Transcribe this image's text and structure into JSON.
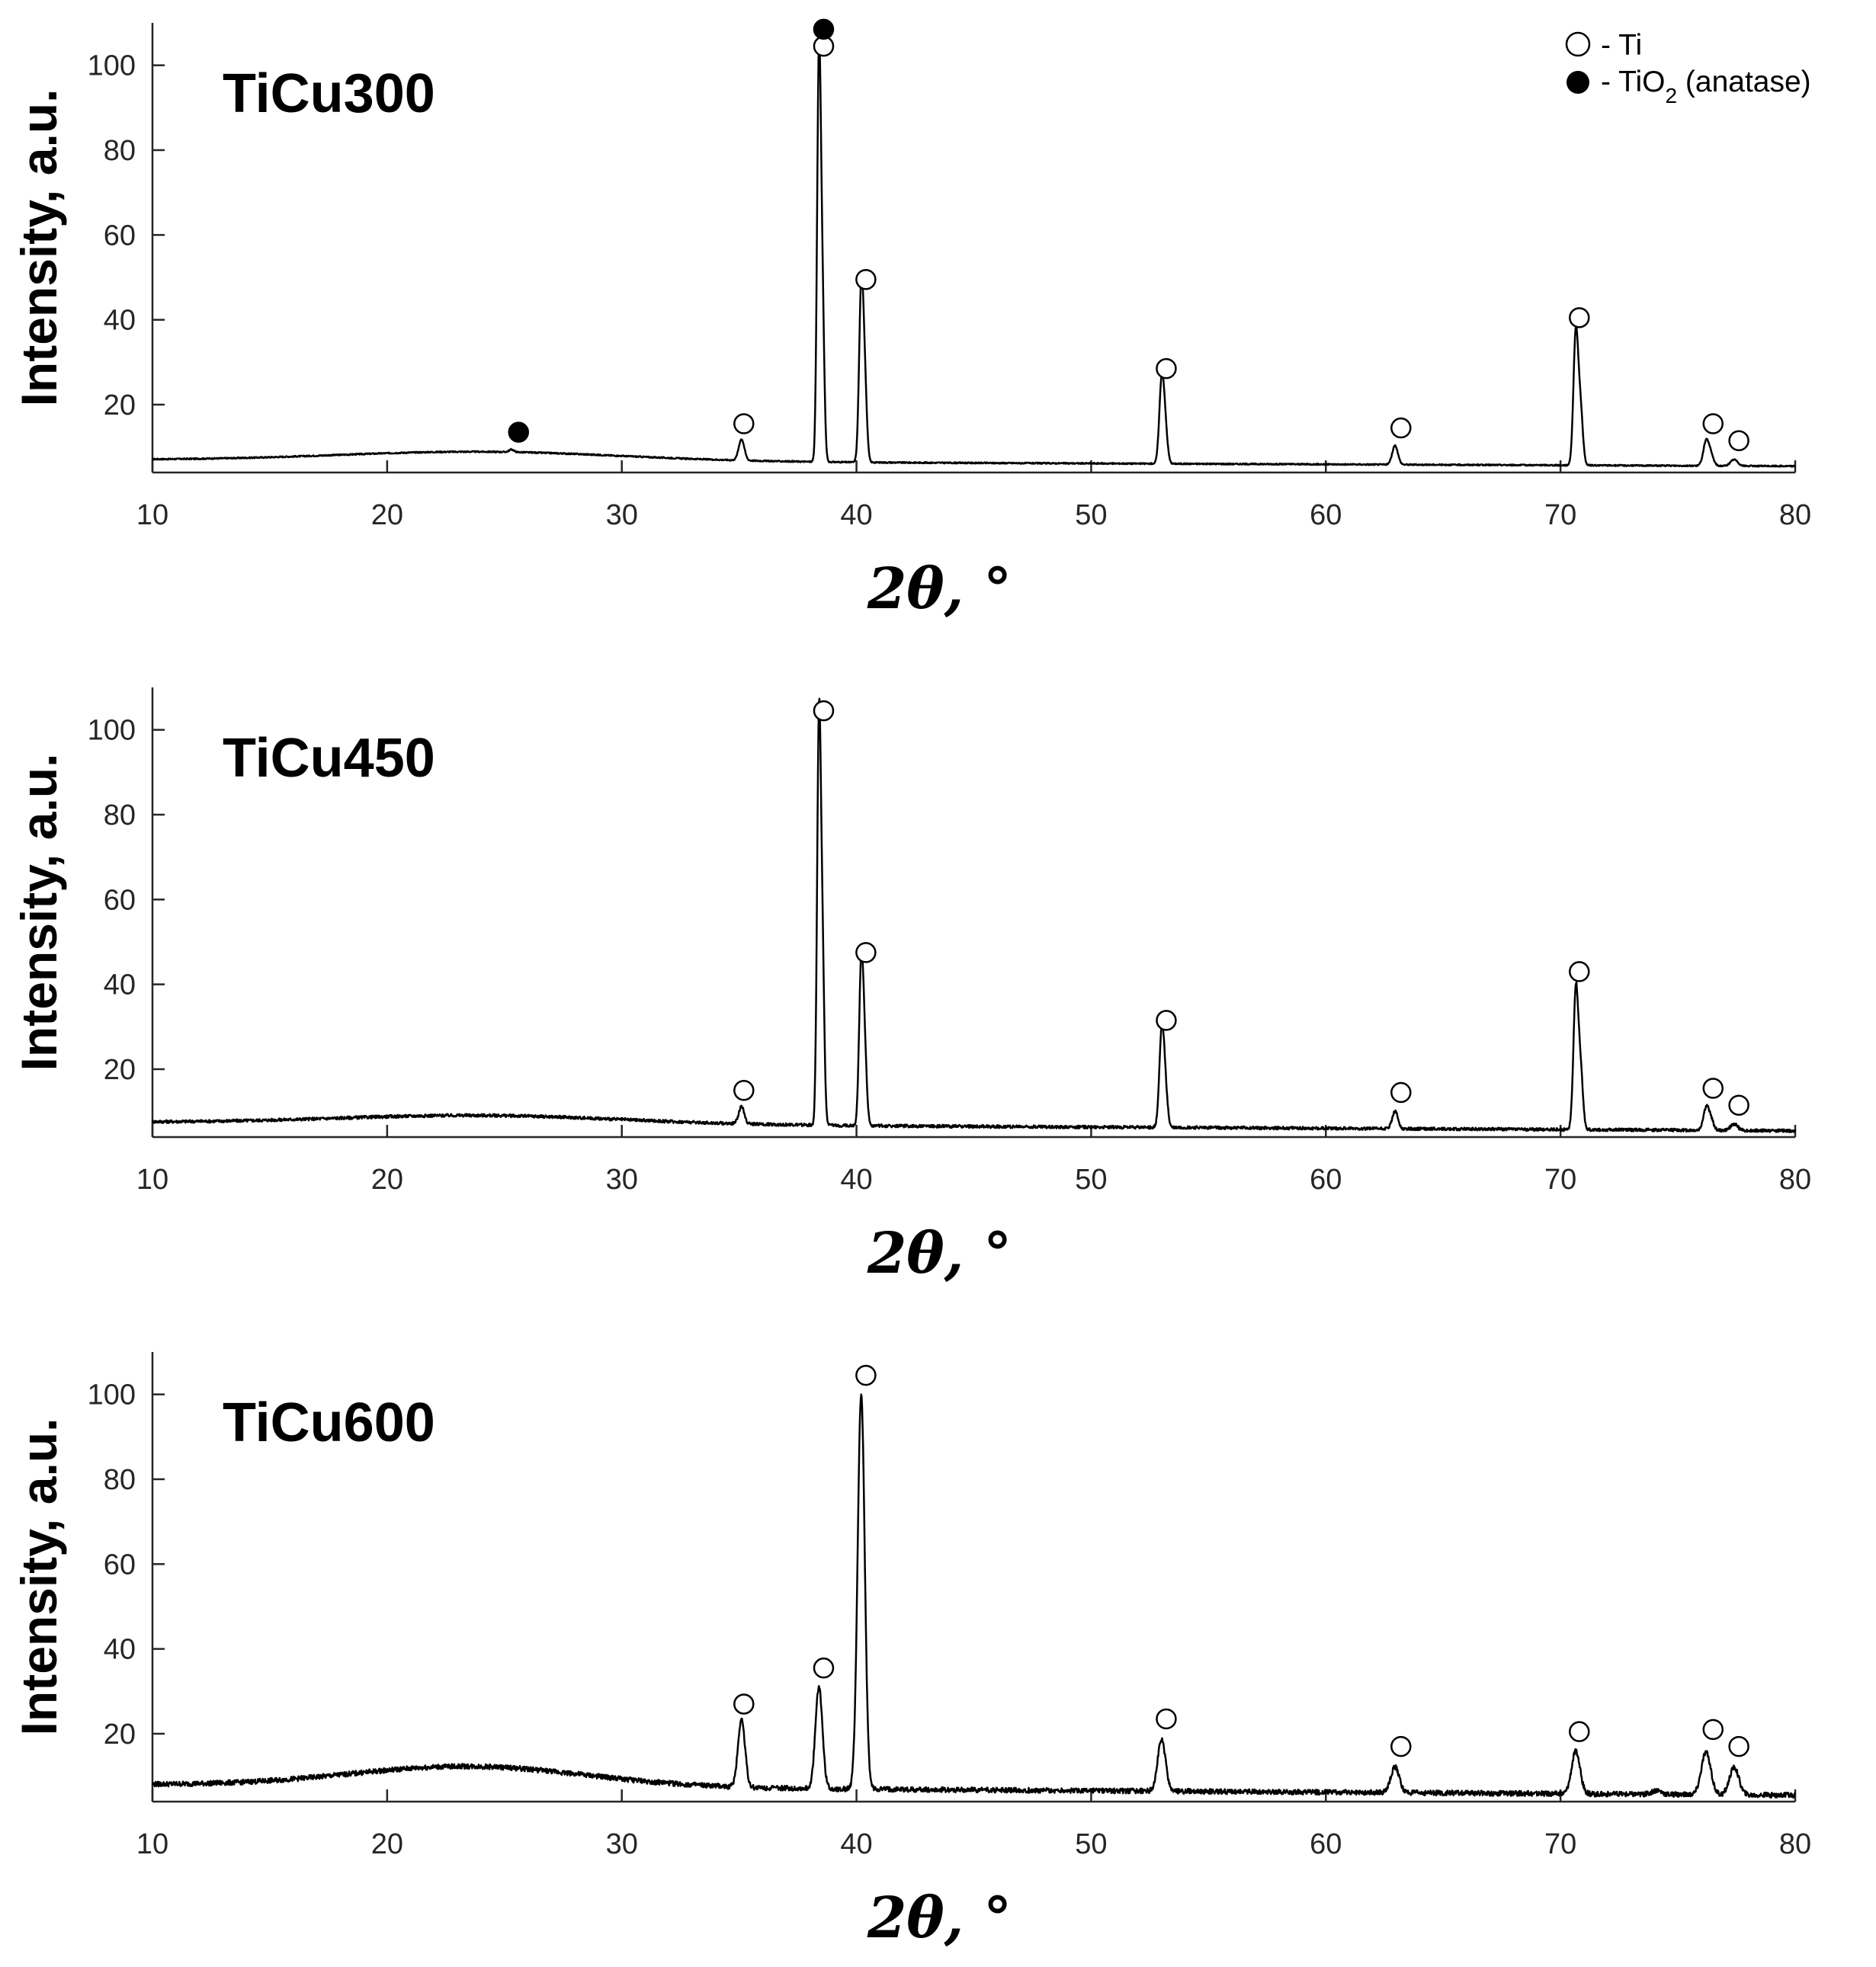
{
  "legend": [
    {
      "marker": "open-circle",
      "label": "- Ti"
    },
    {
      "marker": "filled-circle",
      "label": "- TiO",
      "sub": "2",
      "suffix": " (anatase)"
    }
  ],
  "chart_data": [
    {
      "type": "line",
      "title": "TiCu300",
      "xlabel": "2θ, °",
      "ylabel": "Intensity, a.u.",
      "xlim": [
        10,
        80
      ],
      "ylim": [
        4,
        110
      ],
      "xticks": [
        10,
        20,
        30,
        40,
        50,
        60,
        70,
        80
      ],
      "yticks": [
        20,
        40,
        60,
        80,
        100
      ],
      "baseline": {
        "start": 7,
        "end": 5.5,
        "hump_center": 24,
        "hump_width": 6,
        "hump_height": 2.2
      },
      "noise": 0.15,
      "peaks": [
        {
          "x": 25.3,
          "h": 0.6,
          "w": 0.1
        },
        {
          "x": 35.1,
          "h": 5,
          "w": 0.12
        },
        {
          "x": 38.4,
          "h": 94,
          "w": 0.08
        },
        {
          "x": 38.55,
          "h": 35,
          "w": 0.08
        },
        {
          "x": 40.2,
          "h": 39.5,
          "w": 0.09
        },
        {
          "x": 40.35,
          "h": 18,
          "w": 0.09
        },
        {
          "x": 53.0,
          "h": 18.5,
          "w": 0.1
        },
        {
          "x": 53.15,
          "h": 8,
          "w": 0.1
        },
        {
          "x": 62.95,
          "h": 4.5,
          "w": 0.12
        },
        {
          "x": 70.65,
          "h": 31,
          "w": 0.1
        },
        {
          "x": 70.85,
          "h": 13,
          "w": 0.1
        },
        {
          "x": 76.2,
          "h": 5.5,
          "w": 0.12
        },
        {
          "x": 76.4,
          "h": 2.5,
          "w": 0.12
        },
        {
          "x": 77.4,
          "h": 1.5,
          "w": 0.15
        }
      ],
      "markers": [
        {
          "x": 25.6,
          "y": 13.5,
          "phase": "TiO2"
        },
        {
          "x": 35.2,
          "y": 15.5,
          "phase": "Ti"
        },
        {
          "x": 38.6,
          "y": 104.5,
          "phase": "Ti"
        },
        {
          "x": 38.6,
          "y": 108.5,
          "phase": "TiO2"
        },
        {
          "x": 40.4,
          "y": 49.5,
          "phase": "Ti"
        },
        {
          "x": 53.2,
          "y": 28.5,
          "phase": "Ti"
        },
        {
          "x": 63.2,
          "y": 14.5,
          "phase": "Ti"
        },
        {
          "x": 70.8,
          "y": 40.5,
          "phase": "Ti"
        },
        {
          "x": 76.5,
          "y": 15.5,
          "phase": "Ti"
        },
        {
          "x": 77.6,
          "y": 11.5,
          "phase": "Ti"
        }
      ]
    },
    {
      "type": "line",
      "title": "TiCu450",
      "xlabel": "2θ, °",
      "ylabel": "Intensity, a.u.",
      "xlim": [
        10,
        80
      ],
      "ylim": [
        4,
        110
      ],
      "xticks": [
        10,
        20,
        30,
        40,
        50,
        60,
        70,
        80
      ],
      "yticks": [
        20,
        40,
        60,
        80,
        100
      ],
      "baseline": {
        "start": 7.5,
        "end": 5.5,
        "hump_center": 24,
        "hump_width": 6,
        "hump_height": 2.0
      },
      "noise": 0.35,
      "peaks": [
        {
          "x": 35.1,
          "h": 4,
          "w": 0.12
        },
        {
          "x": 38.4,
          "h": 93,
          "w": 0.08
        },
        {
          "x": 38.55,
          "h": 38,
          "w": 0.08
        },
        {
          "x": 40.2,
          "h": 37,
          "w": 0.09
        },
        {
          "x": 40.35,
          "h": 16,
          "w": 0.09
        },
        {
          "x": 53.0,
          "h": 21,
          "w": 0.1
        },
        {
          "x": 53.15,
          "h": 9,
          "w": 0.1
        },
        {
          "x": 62.95,
          "h": 4,
          "w": 0.12
        },
        {
          "x": 70.65,
          "h": 32.5,
          "w": 0.1
        },
        {
          "x": 70.85,
          "h": 14,
          "w": 0.1
        },
        {
          "x": 76.2,
          "h": 5,
          "w": 0.12
        },
        {
          "x": 76.4,
          "h": 2.5,
          "w": 0.12
        },
        {
          "x": 77.4,
          "h": 1.5,
          "w": 0.15
        }
      ],
      "markers": [
        {
          "x": 35.2,
          "y": 15,
          "phase": "Ti"
        },
        {
          "x": 38.6,
          "y": 104.5,
          "phase": "Ti"
        },
        {
          "x": 40.4,
          "y": 47.5,
          "phase": "Ti"
        },
        {
          "x": 53.2,
          "y": 31.5,
          "phase": "Ti"
        },
        {
          "x": 63.2,
          "y": 14.5,
          "phase": "Ti"
        },
        {
          "x": 70.8,
          "y": 43,
          "phase": "Ti"
        },
        {
          "x": 76.5,
          "y": 15.5,
          "phase": "Ti"
        },
        {
          "x": 77.6,
          "y": 11.5,
          "phase": "Ti"
        }
      ]
    },
    {
      "type": "line",
      "title": "TiCu600",
      "xlabel": "2θ, °",
      "ylabel": "Intensity, a.u.",
      "xlim": [
        10,
        80
      ],
      "ylim": [
        4,
        110
      ],
      "xticks": [
        10,
        20,
        30,
        40,
        50,
        60,
        70,
        80
      ],
      "yticks": [
        20,
        40,
        60,
        80,
        100
      ],
      "baseline": {
        "start": 8,
        "end": 5.5,
        "hump_center": 23.5,
        "hump_width": 5,
        "hump_height": 4.8
      },
      "noise": 0.6,
      "peaks": [
        {
          "x": 35.1,
          "h": 16,
          "w": 0.15
        },
        {
          "x": 38.4,
          "h": 24,
          "w": 0.15
        },
        {
          "x": 40.2,
          "h": 93,
          "w": 0.15
        },
        {
          "x": 53.0,
          "h": 12,
          "w": 0.17
        },
        {
          "x": 62.95,
          "h": 6,
          "w": 0.18
        },
        {
          "x": 70.65,
          "h": 10,
          "w": 0.18
        },
        {
          "x": 74.1,
          "h": 1,
          "w": 0.2
        },
        {
          "x": 76.2,
          "h": 10,
          "w": 0.2
        },
        {
          "x": 77.4,
          "h": 6.5,
          "w": 0.2
        }
      ],
      "markers": [
        {
          "x": 35.2,
          "y": 27,
          "phase": "Ti"
        },
        {
          "x": 38.6,
          "y": 35.5,
          "phase": "Ti"
        },
        {
          "x": 40.4,
          "y": 104.5,
          "phase": "Ti"
        },
        {
          "x": 53.2,
          "y": 23.5,
          "phase": "Ti"
        },
        {
          "x": 63.2,
          "y": 17,
          "phase": "Ti"
        },
        {
          "x": 70.8,
          "y": 20.5,
          "phase": "Ti"
        },
        {
          "x": 76.5,
          "y": 21,
          "phase": "Ti"
        },
        {
          "x": 77.6,
          "y": 17,
          "phase": "Ti"
        }
      ]
    }
  ]
}
